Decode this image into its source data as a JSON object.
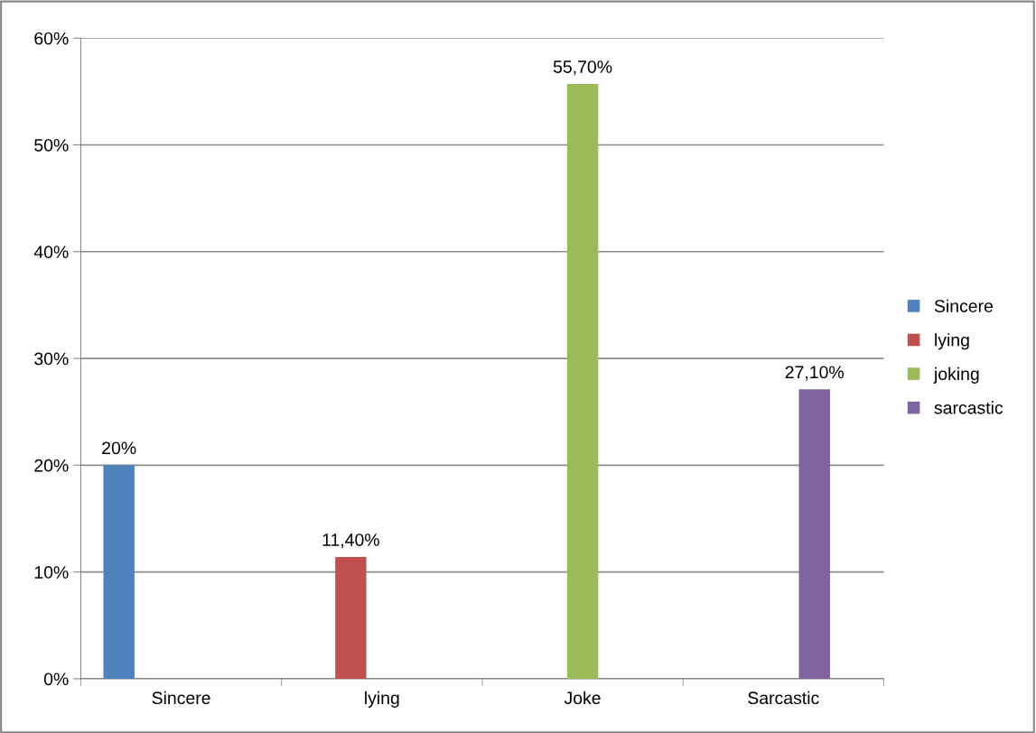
{
  "chart_data": {
    "type": "bar",
    "categories": [
      "Sincere",
      "lying",
      "Joke",
      "Sarcastic"
    ],
    "series": [
      {
        "name": "Sincere",
        "color": "#4f81bd",
        "values": [
          20,
          null,
          null,
          null
        ],
        "value_labels": [
          "20%",
          null,
          null,
          null
        ]
      },
      {
        "name": "lying",
        "color": "#c0504d",
        "values": [
          null,
          11.4,
          null,
          null
        ],
        "value_labels": [
          null,
          "11,40%",
          null,
          null
        ]
      },
      {
        "name": "joking",
        "color": "#9bbb59",
        "values": [
          null,
          null,
          55.7,
          null
        ],
        "value_labels": [
          null,
          null,
          "55,70%",
          null
        ]
      },
      {
        "name": "sarcastic",
        "color": "#8064a2",
        "values": [
          null,
          null,
          null,
          27.1
        ],
        "value_labels": [
          null,
          null,
          null,
          "27,10%"
        ]
      }
    ],
    "ylim": [
      0,
      60
    ],
    "yticks": [
      {
        "value": 0,
        "label": "0%"
      },
      {
        "value": 10,
        "label": "10%"
      },
      {
        "value": 20,
        "label": "20%"
      },
      {
        "value": 30,
        "label": "30%"
      },
      {
        "value": 40,
        "label": "40%"
      },
      {
        "value": 50,
        "label": "50%"
      },
      {
        "value": 60,
        "label": "60%"
      }
    ],
    "grid": "y",
    "legend": "right"
  }
}
